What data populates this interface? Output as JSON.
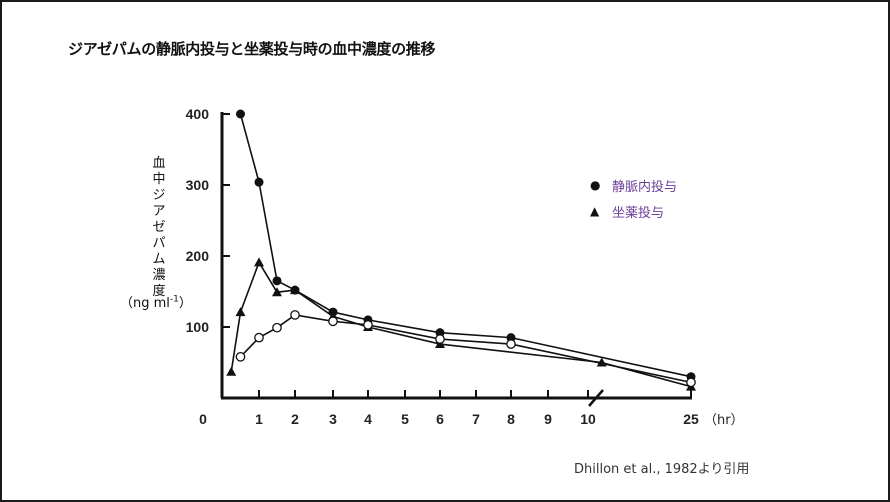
{
  "title": "ジアゼパムの静脈内投与と坐薬投与時の血中濃度の推移",
  "source": "Dhillon et al., 1982より引用",
  "legend": {
    "items": [
      {
        "marker": "●",
        "label": "静脈内投与"
      },
      {
        "marker": "▲",
        "label": "坐薬投与"
      }
    ],
    "label_color": "#6a3d9a"
  },
  "y_axis": {
    "label": "血中ジアゼパム濃度",
    "unit_prefix": "（ng ml",
    "unit_sup": "-1",
    "unit_suffix": "）"
  },
  "x_axis": {
    "unit": "（hr）"
  },
  "chart_data": {
    "type": "line",
    "title": "ジアゼパムの静脈内投与と坐薬投与時の血中濃度の推移",
    "xlabel": "(hr)",
    "ylabel": "血中ジアゼパム濃度 (ng ml-1)",
    "x_ticks": [
      "0",
      "1",
      "2",
      "3",
      "4",
      "5",
      "6",
      "7",
      "8",
      "9",
      "10",
      "25"
    ],
    "y_ticks": [
      "100",
      "200",
      "300",
      "400"
    ],
    "ylim": [
      0,
      400
    ],
    "x_axis_break": "between 10 and 25",
    "grid": false,
    "legend_position": "right",
    "series": [
      {
        "name": "静脈内投与",
        "marker": "filled-circle",
        "x": [
          0.5,
          1,
          1.5,
          2,
          3,
          4,
          6,
          8,
          25
        ],
        "values": [
          400,
          304,
          165,
          152,
          121,
          110,
          92,
          85,
          30
        ]
      },
      {
        "name": "坐薬投与",
        "marker": "filled-triangle",
        "x": [
          0.25,
          0.5,
          1,
          1.5,
          2,
          3,
          4,
          6,
          12,
          25
        ],
        "values": [
          37,
          121,
          191,
          149,
          152,
          115,
          100,
          76,
          50,
          16
        ]
      },
      {
        "name": "(unlabeled open-circle series)",
        "marker": "open-circle",
        "x": [
          0.5,
          1,
          1.5,
          2,
          3,
          4,
          6,
          8,
          25
        ],
        "values": [
          58,
          85,
          99,
          117,
          108,
          103,
          83,
          76,
          22
        ]
      }
    ]
  }
}
